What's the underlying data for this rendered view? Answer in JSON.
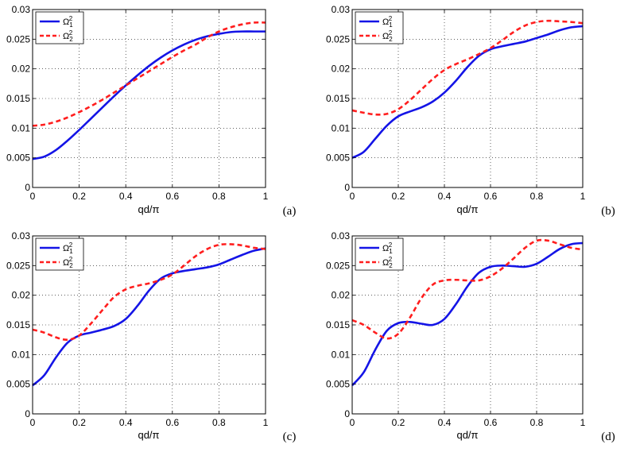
{
  "figure": {
    "colors": {
      "series1": "#1414e6",
      "series2": "#ff1e1e",
      "grid": "#000000"
    },
    "panel_labels": [
      "(a)",
      "(b)",
      "(c)",
      "(d)"
    ]
  },
  "chart_data": [
    {
      "type": "line",
      "panel": "(a)",
      "xlabel": "qd/π",
      "ylabel": "",
      "xlim": [
        0,
        1
      ],
      "ylim": [
        0,
        0.03
      ],
      "xticks": [
        0,
        0.2,
        0.4,
        0.6,
        0.8,
        1
      ],
      "xtick_labels": [
        "0",
        "0.2",
        "0.4",
        "0.6",
        "0.8",
        "1"
      ],
      "yticks": [
        0,
        0.005,
        0.01,
        0.015,
        0.02,
        0.025,
        0.03
      ],
      "ytick_labels": [
        "0",
        "0.005",
        "0.01",
        "0.015",
        "0.02",
        "0.025",
        "0.03"
      ],
      "grid": true,
      "legend": "top-left",
      "x": [
        0,
        0.05,
        0.1,
        0.15,
        0.2,
        0.25,
        0.3,
        0.35,
        0.4,
        0.45,
        0.5,
        0.55,
        0.6,
        0.65,
        0.7,
        0.75,
        0.8,
        0.85,
        0.9,
        0.95,
        1
      ],
      "series": [
        {
          "name": "Ω",
          "sub": "1",
          "sup": "2",
          "style": "solid",
          "values": [
            0.0048,
            0.0052,
            0.0063,
            0.0079,
            0.0097,
            0.0116,
            0.0135,
            0.0154,
            0.0172,
            0.0189,
            0.0205,
            0.0219,
            0.0231,
            0.0241,
            0.0249,
            0.0255,
            0.0259,
            0.0262,
            0.0263,
            0.0263,
            0.0263
          ]
        },
        {
          "name": "Ω",
          "sub": "2",
          "sup": "2",
          "style": "dashed",
          "values": [
            0.0104,
            0.0106,
            0.0111,
            0.0118,
            0.0127,
            0.0137,
            0.0148,
            0.016,
            0.0172,
            0.0184,
            0.0196,
            0.0208,
            0.022,
            0.0231,
            0.0241,
            0.0253,
            0.0263,
            0.027,
            0.0275,
            0.0278,
            0.0278
          ]
        }
      ]
    },
    {
      "type": "line",
      "panel": "(b)",
      "xlabel": "qd/π",
      "ylabel": "",
      "xlim": [
        0,
        1
      ],
      "ylim": [
        0,
        0.03
      ],
      "xticks": [
        0,
        0.2,
        0.4,
        0.6,
        0.8,
        1
      ],
      "xtick_labels": [
        "0",
        "0.2",
        "0.4",
        "0.6",
        "0.8",
        "1"
      ],
      "yticks": [
        0,
        0.005,
        0.01,
        0.015,
        0.02,
        0.025,
        0.03
      ],
      "ytick_labels": [
        "0",
        "0.005",
        "0.01",
        "0.015",
        "0.02",
        "0.025",
        "0.03"
      ],
      "grid": true,
      "legend": "top-left",
      "x": [
        0,
        0.05,
        0.1,
        0.15,
        0.2,
        0.25,
        0.3,
        0.35,
        0.4,
        0.45,
        0.5,
        0.55,
        0.6,
        0.65,
        0.7,
        0.75,
        0.8,
        0.85,
        0.9,
        0.95,
        1
      ],
      "series": [
        {
          "name": "Ω",
          "sub": "1",
          "sup": "2",
          "style": "solid",
          "values": [
            0.005,
            0.006,
            0.0082,
            0.0104,
            0.012,
            0.0128,
            0.0135,
            0.0145,
            0.016,
            0.018,
            0.0203,
            0.0222,
            0.0233,
            0.0238,
            0.0242,
            0.0246,
            0.0252,
            0.0258,
            0.0265,
            0.027,
            0.0272
          ]
        },
        {
          "name": "Ω",
          "sub": "2",
          "sup": "2",
          "style": "dashed",
          "values": [
            0.013,
            0.0126,
            0.0123,
            0.0124,
            0.0132,
            0.0147,
            0.0165,
            0.0183,
            0.0198,
            0.0208,
            0.0216,
            0.0225,
            0.0235,
            0.0248,
            0.0262,
            0.0273,
            0.0279,
            0.0281,
            0.028,
            0.0279,
            0.0277
          ]
        }
      ]
    },
    {
      "type": "line",
      "panel": "(c)",
      "xlabel": "qd/π",
      "ylabel": "",
      "xlim": [
        0,
        1
      ],
      "ylim": [
        0,
        0.03
      ],
      "xticks": [
        0,
        0.2,
        0.4,
        0.6,
        0.8,
        1
      ],
      "xtick_labels": [
        "0",
        "0.2",
        "0.4",
        "0.6",
        "0.8",
        "1"
      ],
      "yticks": [
        0,
        0.005,
        0.01,
        0.015,
        0.02,
        0.025,
        0.03
      ],
      "ytick_labels": [
        "0",
        "0.005",
        "0.01",
        "0.015",
        "0.02",
        "0.025",
        "0.03"
      ],
      "grid": true,
      "legend": "top-left",
      "x": [
        0,
        0.05,
        0.1,
        0.15,
        0.2,
        0.25,
        0.3,
        0.35,
        0.4,
        0.45,
        0.5,
        0.55,
        0.6,
        0.65,
        0.7,
        0.75,
        0.8,
        0.85,
        0.9,
        0.95,
        1
      ],
      "series": [
        {
          "name": "Ω",
          "sub": "1",
          "sup": "2",
          "style": "solid",
          "values": [
            0.0048,
            0.0065,
            0.0095,
            0.012,
            0.0132,
            0.0137,
            0.0142,
            0.0148,
            0.016,
            0.0182,
            0.0208,
            0.0228,
            0.0237,
            0.0241,
            0.0244,
            0.0247,
            0.0252,
            0.026,
            0.0268,
            0.0275,
            0.0279
          ]
        },
        {
          "name": "Ω",
          "sub": "2",
          "sup": "2",
          "style": "dashed",
          "values": [
            0.0142,
            0.0137,
            0.0129,
            0.0125,
            0.0132,
            0.0152,
            0.0175,
            0.0197,
            0.021,
            0.0216,
            0.022,
            0.0226,
            0.0235,
            0.025,
            0.0266,
            0.0278,
            0.0285,
            0.0286,
            0.0284,
            0.028,
            0.0278
          ]
        }
      ]
    },
    {
      "type": "line",
      "panel": "(d)",
      "xlabel": "qd/π",
      "ylabel": "",
      "xlim": [
        0,
        1
      ],
      "ylim": [
        0,
        0.03
      ],
      "xticks": [
        0,
        0.2,
        0.4,
        0.6,
        0.8,
        1
      ],
      "xtick_labels": [
        "0",
        "0.2",
        "0.4",
        "0.6",
        "0.8",
        "1"
      ],
      "yticks": [
        0,
        0.005,
        0.01,
        0.015,
        0.02,
        0.025,
        0.03
      ],
      "ytick_labels": [
        "0",
        "0.005",
        "0.01",
        "0.015",
        "0.02",
        "0.025",
        "0.03"
      ],
      "grid": true,
      "legend": "top-left",
      "x": [
        0,
        0.05,
        0.1,
        0.15,
        0.2,
        0.25,
        0.3,
        0.35,
        0.4,
        0.45,
        0.5,
        0.55,
        0.6,
        0.65,
        0.7,
        0.75,
        0.8,
        0.85,
        0.9,
        0.95,
        1
      ],
      "series": [
        {
          "name": "Ω",
          "sub": "1",
          "sup": "2",
          "style": "solid",
          "values": [
            0.0048,
            0.007,
            0.0108,
            0.014,
            0.0153,
            0.0155,
            0.0152,
            0.015,
            0.016,
            0.0185,
            0.0215,
            0.0238,
            0.0248,
            0.025,
            0.0249,
            0.0248,
            0.0253,
            0.0265,
            0.0278,
            0.0286,
            0.0288
          ]
        },
        {
          "name": "Ω",
          "sub": "2",
          "sup": "2",
          "style": "dashed",
          "values": [
            0.0158,
            0.015,
            0.0137,
            0.0127,
            0.0135,
            0.0162,
            0.0195,
            0.0218,
            0.0225,
            0.0226,
            0.0225,
            0.0225,
            0.0232,
            0.0245,
            0.0262,
            0.028,
            0.0292,
            0.0292,
            0.0286,
            0.028,
            0.0277
          ]
        }
      ]
    }
  ]
}
